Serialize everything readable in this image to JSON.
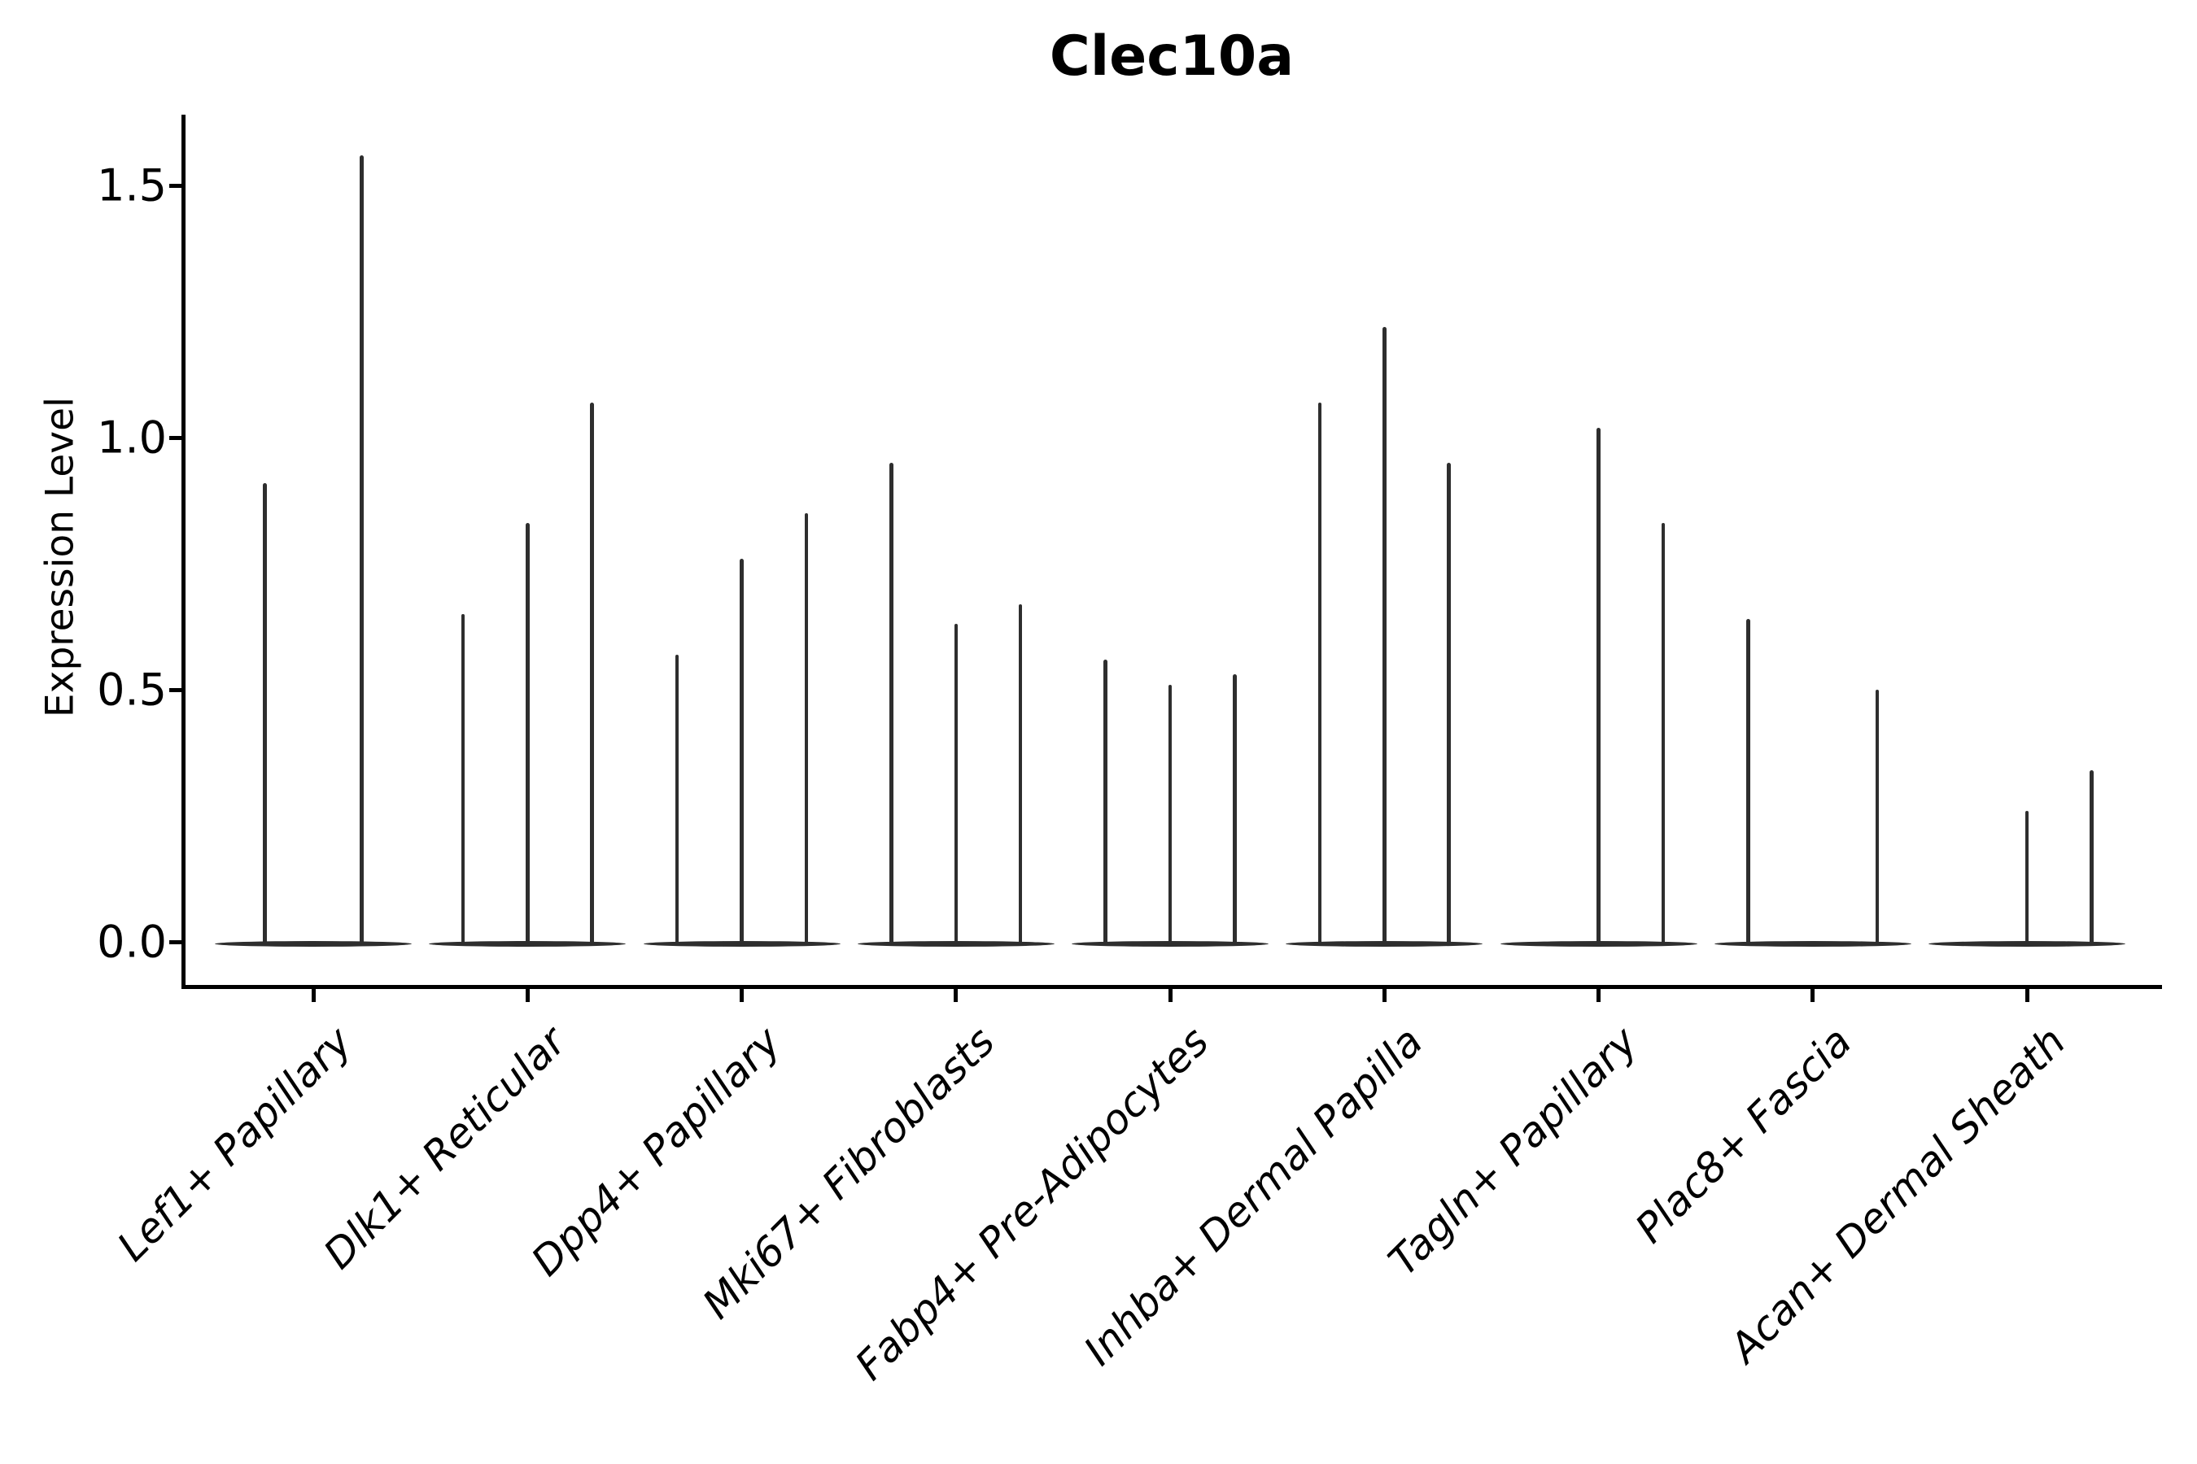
{
  "colors": {
    "background": "#ffffff",
    "violin": "#2e2e2e",
    "axis": "#000000",
    "text": "#000000"
  },
  "chart_data": {
    "type": "violin",
    "title": "Clec10a",
    "ylabel": "Expression Level",
    "xlabel": "",
    "ylim": [
      0,
      1.62
    ],
    "y_ticks": [
      "0.0",
      "0.5",
      "1.0",
      "1.5"
    ],
    "grid": false,
    "legend": "none",
    "categories": [
      "Lef1+ Papillary",
      "Dlk1+ Reticular",
      "Dpp4+ Papillary",
      "Mki67+ Fibroblasts",
      "Fabp4+ Pre-Adipocytes",
      "Inhba+ Dermal Papilla",
      "Tagln+ Papillary",
      "Plac8+ Fascia",
      "Acan+ Dermal Sheath"
    ],
    "groups": [
      {
        "category": "Lef1+ Papillary",
        "violins": [
          {
            "peak": 0.91
          },
          {
            "peak": 1.56
          }
        ]
      },
      {
        "category": "Dlk1+ Reticular",
        "violins": [
          {
            "peak": 0.65
          },
          {
            "peak": 0.83
          },
          {
            "peak": 1.07
          }
        ]
      },
      {
        "category": "Dpp4+ Papillary",
        "violins": [
          {
            "peak": 0.57
          },
          {
            "peak": 0.76
          },
          {
            "peak": 0.85
          }
        ]
      },
      {
        "category": "Mki67+ Fibroblasts",
        "violins": [
          {
            "peak": 0.95
          },
          {
            "peak": 0.63
          },
          {
            "peak": 0.67
          }
        ]
      },
      {
        "category": "Fabp4+ Pre-Adipocytes",
        "violins": [
          {
            "peak": 0.56
          },
          {
            "peak": 0.51
          },
          {
            "peak": 0.53
          }
        ]
      },
      {
        "category": "Inhba+ Dermal Papilla",
        "violins": [
          {
            "peak": 1.07
          },
          {
            "peak": 1.22
          },
          {
            "peak": 0.95
          }
        ]
      },
      {
        "category": "Tagln+ Papillary",
        "violins": [
          {
            "peak": 0
          },
          {
            "peak": 1.02
          },
          {
            "peak": 0.83
          }
        ]
      },
      {
        "category": "Plac8+ Fascia",
        "violins": [
          {
            "peak": 0.64
          },
          {
            "peak": 0
          },
          {
            "peak": 0.5
          }
        ]
      },
      {
        "category": "Acan+ Dermal Sheath",
        "violins": [
          {
            "peak": 0
          },
          {
            "peak": 0.26
          },
          {
            "peak": 0.34
          }
        ]
      }
    ]
  }
}
